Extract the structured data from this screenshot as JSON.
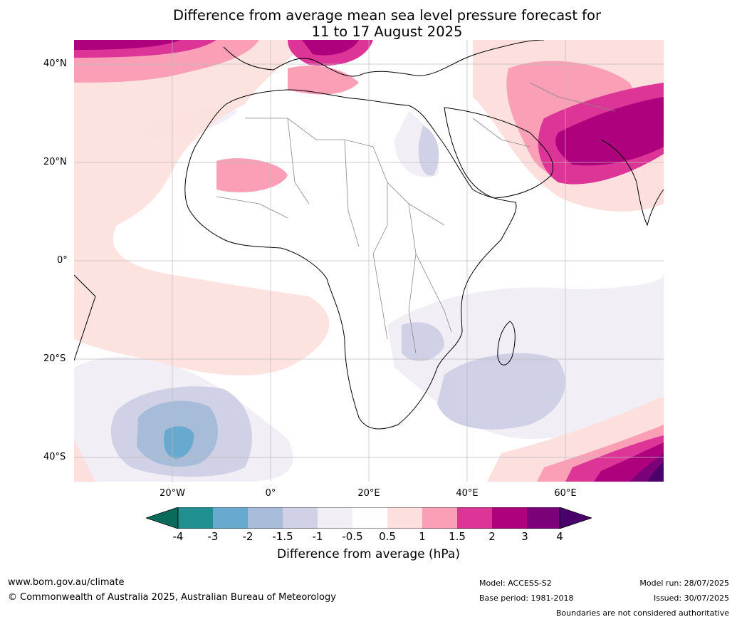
{
  "header": {
    "title_line1": "Difference from average mean sea level pressure forecast for",
    "title_line2": "11 to 17 August 2025"
  },
  "map": {
    "lat_labels": [
      "40°N",
      "20°N",
      "0°",
      "20°S",
      "40°S"
    ],
    "lon_labels": [
      "20°W",
      "0°",
      "20°E",
      "40°E",
      "60°E"
    ],
    "extent": {
      "lon": [
        -40,
        80
      ],
      "lat": [
        -45,
        45
      ]
    }
  },
  "colorbar": {
    "ticks": [
      "-4",
      "-3",
      "-2",
      "-1.5",
      "-1",
      "-0.5",
      "0.5",
      "1",
      "1.5",
      "2",
      "3",
      "4"
    ],
    "colors": {
      "below_min": "#0b6b5a",
      "n4_n3": "#1f8f8f",
      "n3_n2": "#67a9cf",
      "n2_n15": "#a6bcd9",
      "n15_n1": "#d0d1e6",
      "n1_n05": "#f1eef6",
      "n05_05": "#ffffff",
      "p05_1": "#fde0dd",
      "p1_15": "#fa9fb5",
      "p15_2": "#dd3497",
      "p2_3": "#ae017e",
      "p3_4": "#7a0177",
      "above_max": "#49006a"
    },
    "label": "Difference from average (hPa)"
  },
  "footer": {
    "website": "www.bom.gov.au/climate",
    "copyright": "© Commonwealth of Australia 2025, Australian Bureau of Meteorology",
    "model": "Model: ACCESS-S2",
    "base_period": "Base period: 1981-2018",
    "model_run": "Model run: 28/07/2025",
    "issued": "Issued: 30/07/2025",
    "disclaimer": "Boundaries are not considered authoritative"
  }
}
